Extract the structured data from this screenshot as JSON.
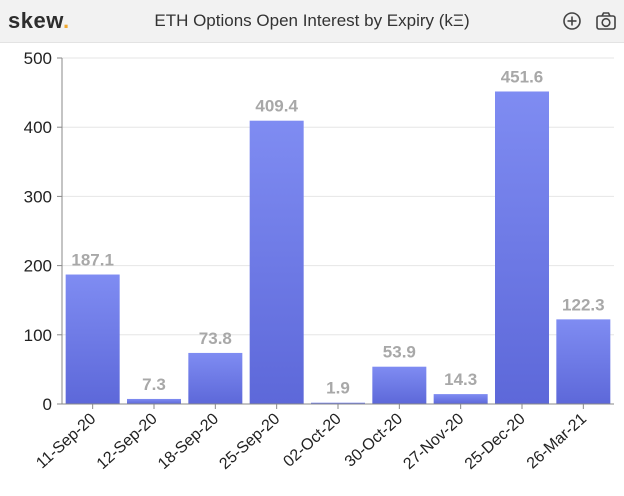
{
  "header": {
    "logo_text": "skew",
    "logo_dot": ".",
    "title": "ETH Options Open Interest by Expiry (kΞ)",
    "icons": [
      "zoom-in-icon",
      "camera-icon"
    ]
  },
  "colors": {
    "bar": "#7480ea",
    "bar_dark": "#5d68d9",
    "accent": "#f0a830"
  },
  "chart_data": {
    "type": "bar",
    "title": "ETH Options Open Interest by Expiry (kΞ)",
    "categories": [
      "11-Sep-20",
      "12-Sep-20",
      "18-Sep-20",
      "25-Sep-20",
      "02-Oct-20",
      "30-Oct-20",
      "27-Nov-20",
      "25-Dec-20",
      "26-Mar-21"
    ],
    "values": [
      187.1,
      7.3,
      73.8,
      409.4,
      1.9,
      53.9,
      14.3,
      451.6,
      122.3
    ],
    "value_labels": [
      "187.1",
      "7.3",
      "73.8",
      "409.4",
      "1.9",
      "53.9",
      "14.3",
      "451.6",
      "122.3"
    ],
    "ylim": [
      0,
      500
    ],
    "yticks": [
      0,
      100,
      200,
      300,
      400,
      500
    ],
    "ytick_labels": [
      "0",
      "100",
      "200",
      "300",
      "400",
      "500"
    ],
    "grid": true,
    "xlabel": "",
    "ylabel": ""
  }
}
